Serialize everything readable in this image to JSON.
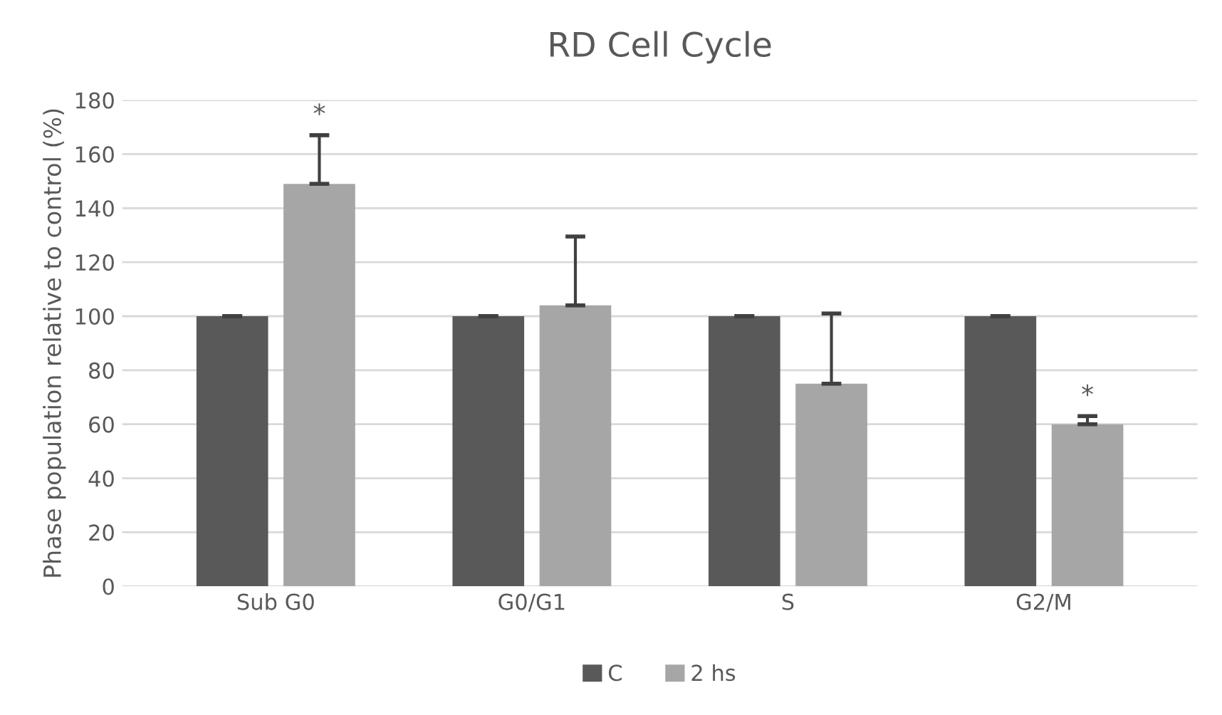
{
  "chart_data": {
    "type": "bar",
    "title": "RD Cell Cycle",
    "ylabel": "Phase population relative to control (%)",
    "categories": [
      "Sub G0",
      "G0/G1",
      "S",
      "G2/M"
    ],
    "series": [
      {
        "name": "C",
        "color": "#595959",
        "values": [
          100,
          100,
          100,
          100
        ],
        "errors": [
          [
            100,
            100
          ],
          [
            100,
            100
          ],
          [
            100,
            100
          ],
          [
            100,
            100
          ]
        ]
      },
      {
        "name": "2 hs",
        "color": "#a6a6a6",
        "values": [
          149,
          104,
          75,
          60
        ],
        "value_labels": [
          "*",
          null,
          null,
          "*"
        ],
        "errors": [
          [
            149,
            167
          ],
          [
            104,
            129.5
          ],
          [
            75,
            101
          ],
          [
            60,
            63
          ]
        ]
      }
    ],
    "ylim": [
      0,
      180
    ],
    "yticks": [
      0,
      20,
      40,
      60,
      80,
      100,
      120,
      140,
      160,
      180
    ],
    "grid": "y",
    "legend": "bottom"
  }
}
